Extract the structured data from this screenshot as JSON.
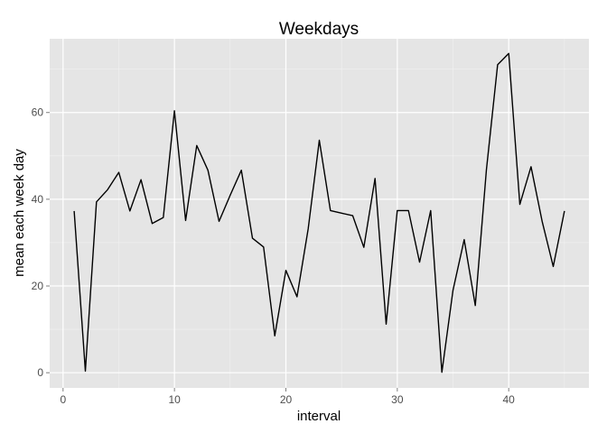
{
  "chart_data": {
    "type": "line",
    "title": "Weekdays",
    "xlabel": "interval",
    "ylabel": "mean each week day",
    "xlim": [
      -1.2,
      47.2
    ],
    "ylim": [
      -3.5,
      77
    ],
    "xticks": [
      0,
      10,
      20,
      30,
      40
    ],
    "yticks": [
      0,
      20,
      40,
      60
    ],
    "xtick_labels": [
      "0",
      "10",
      "20",
      "30",
      "40"
    ],
    "ytick_labels": [
      "0",
      "20",
      "40",
      "60"
    ],
    "grid": true,
    "colors": {
      "panel": "#e5e5e5",
      "grid_major": "#ffffff",
      "grid_minor": "#f2f2f2",
      "line": "#000000",
      "tick_text": "#4d4d4d"
    },
    "series": [
      {
        "x": [
          1,
          2,
          3,
          4,
          5,
          6,
          7,
          8,
          9,
          10,
          11,
          12,
          13,
          14,
          15,
          16,
          17,
          18,
          19,
          20,
          21,
          22,
          23,
          24,
          25,
          26,
          27,
          28,
          29,
          30,
          31,
          32,
          33,
          34,
          35,
          36,
          37,
          38,
          39,
          40,
          41,
          42,
          43,
          44,
          45
        ],
        "values": [
          37.3,
          0.4,
          39.4,
          42.2,
          46.2,
          37.3,
          44.5,
          34.4,
          35.8,
          60.4,
          35.1,
          52.4,
          46.7,
          34.9,
          40.9,
          46.7,
          31.0,
          29.0,
          8.5,
          23.6,
          17.5,
          33.2,
          53.6,
          37.4,
          36.8,
          36.2,
          28.9,
          44.8,
          11.2,
          37.4,
          37.4,
          25.5,
          37.4,
          0.1,
          19.0,
          30.7,
          15.5,
          46.8,
          71.0,
          73.6,
          38.8,
          47.5,
          34.9,
          24.5,
          37.3
        ]
      }
    ]
  }
}
